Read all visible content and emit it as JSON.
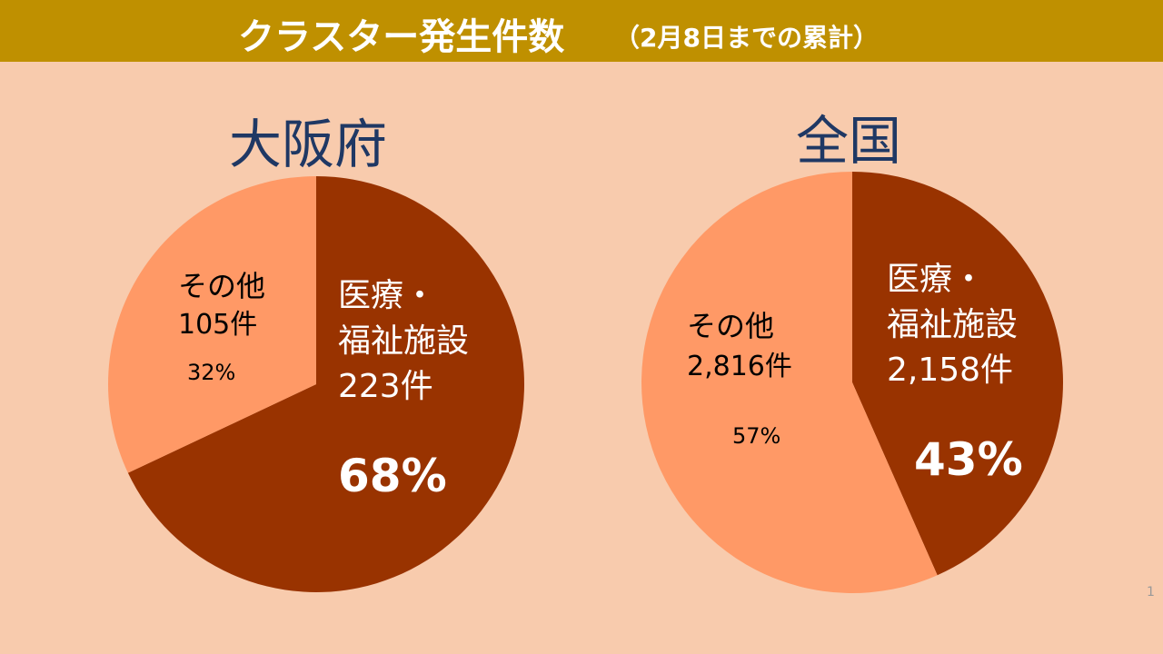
{
  "header": {
    "title": "クラスター発生件数",
    "subtitle": "（2月8日までの累計）"
  },
  "colors": {
    "background": "#f8cbad",
    "header_bar": "#bf9000",
    "title_text": "#1f3864",
    "medical_slice": "#993300",
    "other_slice": "#ff9966"
  },
  "chart_data": [
    {
      "type": "pie",
      "title": "大阪府",
      "slices": [
        {
          "label_line1": "医療・",
          "label_line2": "福祉施設",
          "count": "223件",
          "value": 223,
          "percent": "68%"
        },
        {
          "label_line1": "その他",
          "count": "105件",
          "value": 105,
          "percent": "32%"
        }
      ]
    },
    {
      "type": "pie",
      "title": "全国",
      "slices": [
        {
          "label_line1": "医療・",
          "label_line2": "福祉施設",
          "count": "2,158件",
          "value": 2158,
          "percent": "43%"
        },
        {
          "label_line1": "その他",
          "count": "2,816件",
          "value": 2816,
          "percent": "57%"
        }
      ]
    }
  ],
  "page_number": "1"
}
